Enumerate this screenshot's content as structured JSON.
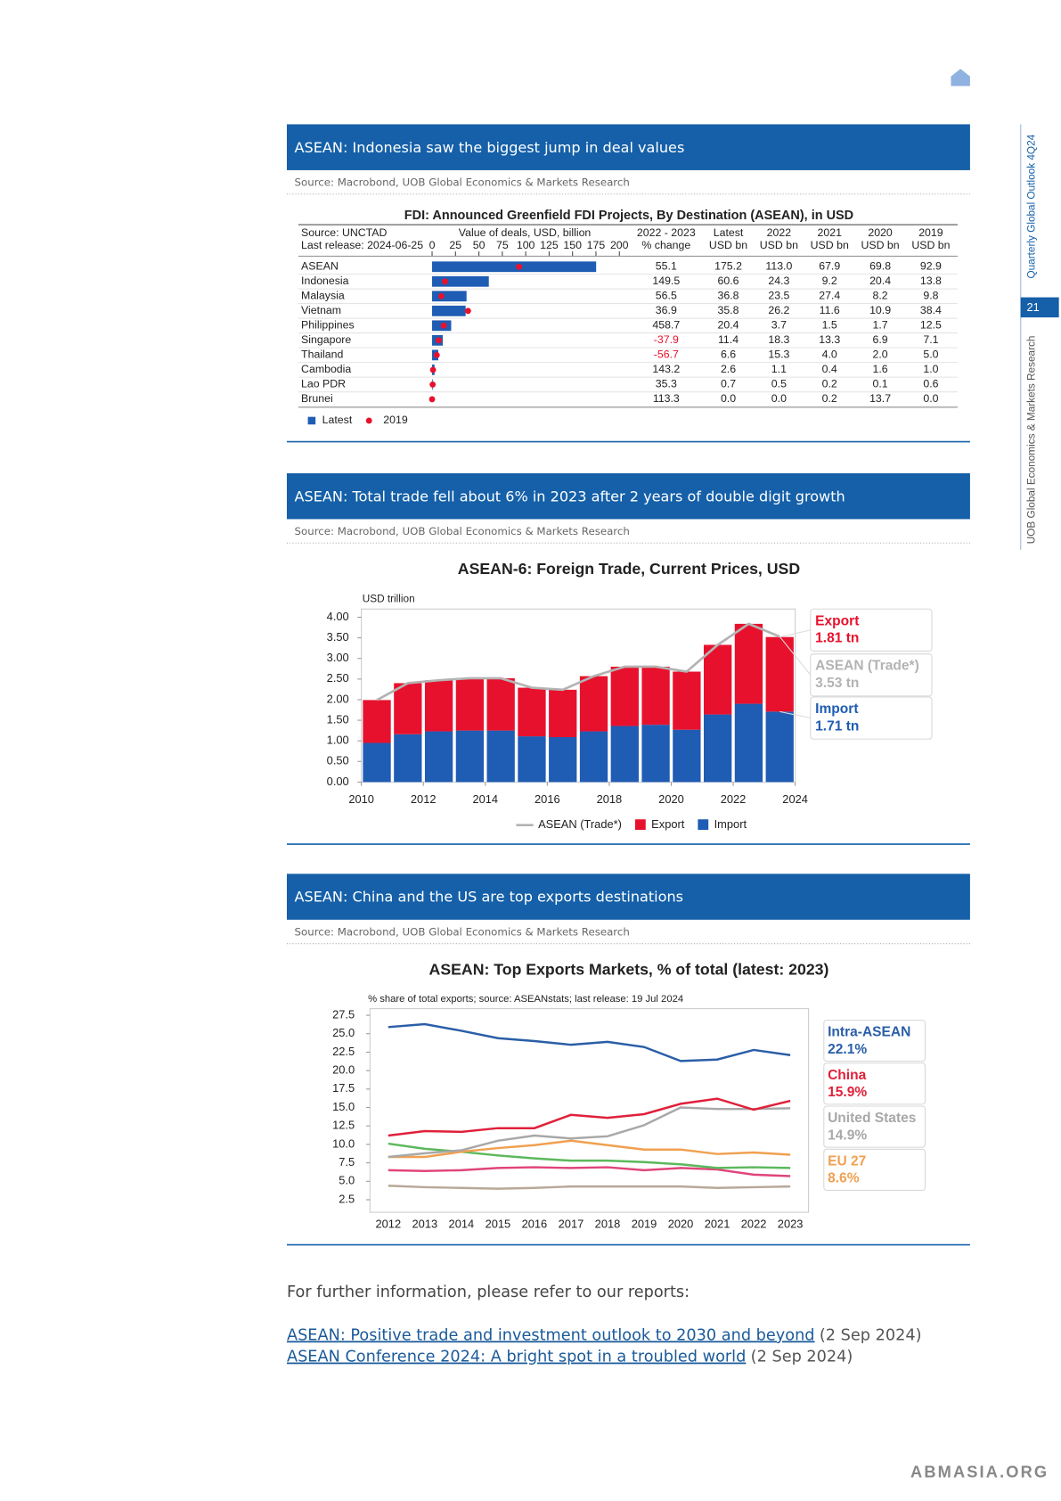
{
  "sidebar": {
    "publication": "Quarterly Global Outlook 4Q24",
    "page_number": "21",
    "department": "UOB Global Economics & Markets Research"
  },
  "sections": [
    {
      "title": "ASEAN: Indonesia saw the biggest jump in deal values",
      "source": "Source: Macrobond, UOB Global Economics & Markets Research"
    },
    {
      "title": "ASEAN: Total trade fell about 6% in 2023 after 2 years of double digit growth",
      "source": "Source: Macrobond, UOB Global Economics & Markets Research"
    },
    {
      "title": "ASEAN: China and the US are top exports destinations",
      "source": "Source: Macrobond, UOB Global Economics & Markets Research"
    }
  ],
  "chart_data": [
    {
      "type": "bar",
      "orientation": "horizontal",
      "title": "FDI: Announced Greenfield FDI Projects, By Destination (ASEAN), in USD",
      "source_note": "Source: UNCTAD",
      "release_note": "Last release: 2024-06-25",
      "axis_label": "Value of deals, USD, billion",
      "categories": [
        "ASEAN",
        "Indonesia",
        "Malaysia",
        "Vietnam",
        "Philippines",
        "Singapore",
        "Thailand",
        "Cambodia",
        "Lao PDR",
        "Brunei"
      ],
      "xlim": [
        0,
        200
      ],
      "xticks": [
        0,
        25,
        50,
        75,
        100,
        125,
        150,
        175,
        200
      ],
      "series": [
        {
          "name": "Latest",
          "unit": "USD bn",
          "color": "#1f5cb4",
          "mark": "bar",
          "values": [
            175.2,
            60.6,
            36.8,
            35.8,
            20.4,
            11.4,
            6.6,
            2.6,
            0.7,
            0.0
          ],
          "value_labels": [
            "175.2",
            "60.6",
            "36.8",
            "35.8",
            "20.4",
            "11.4",
            "6.6",
            "2.6",
            "0.7",
            "0.0"
          ]
        },
        {
          "name": "2019",
          "unit": "USD bn",
          "color": "#e8112d",
          "mark": "dot",
          "values": [
            92.9,
            13.8,
            9.8,
            38.4,
            12.5,
            7.1,
            5.0,
            1.0,
            0.6,
            0.0
          ],
          "value_labels": [
            "92.9",
            "13.8",
            "9.8",
            "38.4",
            "12.5",
            "7.1",
            "5.0",
            "1.0",
            "0.6",
            "0.0"
          ]
        }
      ],
      "columns": [
        {
          "name": "2022 - 2023",
          "unit": "% change",
          "values": [
            55.1,
            149.5,
            56.5,
            36.9,
            458.7,
            -37.9,
            -56.7,
            143.2,
            35.3,
            113.3
          ],
          "value_labels": [
            "55.1",
            "149.5",
            "56.5",
            "36.9",
            "458.7",
            "-37.9",
            "-56.7",
            "143.2",
            "35.3",
            "113.3"
          ]
        },
        {
          "name": "2022",
          "unit": "USD bn",
          "values": [
            113.0,
            24.3,
            23.5,
            26.2,
            3.7,
            18.3,
            15.3,
            1.1,
            0.5,
            0.0
          ],
          "value_labels": [
            "113.0",
            "24.3",
            "23.5",
            "26.2",
            "3.7",
            "18.3",
            "15.3",
            "1.1",
            "0.5",
            "0.0"
          ]
        },
        {
          "name": "2021",
          "unit": "USD bn",
          "values": [
            67.9,
            9.2,
            27.4,
            11.6,
            1.5,
            13.3,
            4.0,
            0.4,
            0.2,
            0.2
          ],
          "value_labels": [
            "67.9",
            "9.2",
            "27.4",
            "11.6",
            "1.5",
            "13.3",
            "4.0",
            "0.4",
            "0.2",
            "0.2"
          ]
        },
        {
          "name": "2020",
          "unit": "USD bn",
          "values": [
            69.8,
            20.4,
            8.2,
            10.9,
            1.7,
            6.9,
            2.0,
            1.6,
            0.1,
            13.7
          ],
          "value_labels": [
            "69.8",
            "20.4",
            "8.2",
            "10.9",
            "1.7",
            "6.9",
            "2.0",
            "1.6",
            "0.1",
            "13.7"
          ]
        }
      ],
      "negative_color": "#e8112d"
    },
    {
      "type": "bar",
      "stacked": true,
      "title": "ASEAN-6: Foreign Trade, Current Prices, USD",
      "y_label": "USD trillion",
      "x": [
        2010,
        2011,
        2012,
        2013,
        2014,
        2015,
        2016,
        2017,
        2018,
        2019,
        2020,
        2021,
        2022,
        2023
      ],
      "xlim": [
        2010,
        2024
      ],
      "xticks": [
        2010,
        2012,
        2014,
        2016,
        2018,
        2020,
        2022,
        2024
      ],
      "ylim": [
        0,
        4.2
      ],
      "yticks": [
        {
          "value": 0,
          "label": "0.00"
        },
        {
          "value": 0.5,
          "label": "0.50"
        },
        {
          "value": 1,
          "label": "1.00"
        },
        {
          "value": 1.5,
          "label": "1.50"
        },
        {
          "value": 2,
          "label": "2.00"
        },
        {
          "value": 2.5,
          "label": "2.50"
        },
        {
          "value": 3,
          "label": "3.00"
        },
        {
          "value": 3.5,
          "label": "3.50"
        },
        {
          "value": 4,
          "label": "4.00"
        }
      ],
      "series": [
        {
          "name": "ASEAN (Trade*)",
          "type": "line",
          "color": "#b3b3b3",
          "values": [
            1.99,
            2.4,
            2.47,
            2.52,
            2.52,
            2.29,
            2.24,
            2.57,
            2.8,
            2.8,
            2.68,
            3.33,
            3.84,
            3.53
          ],
          "end_label": "3.53 tn"
        },
        {
          "name": "Export",
          "type": "bar",
          "color": "#e8112d",
          "values": [
            1.04,
            1.24,
            1.24,
            1.27,
            1.27,
            1.18,
            1.15,
            1.34,
            1.44,
            1.41,
            1.41,
            1.69,
            1.94,
            1.81
          ],
          "end_label": "1.81 tn"
        },
        {
          "name": "Import",
          "type": "bar",
          "color": "#1f5cb4",
          "values": [
            0.95,
            1.16,
            1.23,
            1.25,
            1.25,
            1.11,
            1.09,
            1.23,
            1.36,
            1.39,
            1.27,
            1.64,
            1.9,
            1.71
          ],
          "end_label": "1.71 tn"
        }
      ],
      "legend": "bottom"
    },
    {
      "type": "line",
      "title": "ASEAN: Top Exports Markets, % of total (latest: 2023)",
      "subtitle": "% share of total exports; source: ASEANstats; last release: 19 Jul 2024",
      "categories": [
        2012,
        2013,
        2014,
        2015,
        2016,
        2017,
        2018,
        2019,
        2020,
        2021,
        2022,
        2023
      ],
      "ylim": [
        0.8,
        28.4
      ],
      "yticks": [
        2.5,
        {
          "value": 5,
          "label": "5.0"
        },
        7.5,
        {
          "value": 10,
          "label": "10.0"
        },
        12.5,
        {
          "value": 15,
          "label": "15.0"
        },
        17.5,
        {
          "value": 20,
          "label": "20.0"
        },
        22.5,
        {
          "value": 25,
          "label": "25.0"
        },
        27.5
      ],
      "series": [
        {
          "name": "Intra-ASEAN",
          "color": "#2a5ea8",
          "values": [
            25.9,
            26.3,
            25.4,
            24.4,
            24.0,
            23.5,
            23.9,
            23.2,
            21.3,
            21.5,
            22.8,
            22.1
          ],
          "end_label": "22.1%"
        },
        {
          "name": "China",
          "color": "#e0203a",
          "values": [
            11.2,
            11.8,
            11.7,
            12.2,
            12.2,
            14.0,
            13.6,
            14.1,
            15.5,
            16.2,
            14.7,
            15.9
          ],
          "end_label": "15.9%"
        },
        {
          "name": "United States",
          "color": "#a8a8a8",
          "values": [
            8.3,
            8.8,
            9.2,
            10.5,
            11.2,
            10.8,
            11.1,
            12.6,
            15.0,
            14.8,
            14.8,
            14.9
          ],
          "end_label": "14.9%"
        },
        {
          "name": "EU 27",
          "color": "#f0a050",
          "values": [
            8.3,
            8.3,
            9.0,
            9.5,
            9.9,
            10.5,
            9.9,
            9.3,
            9.3,
            8.7,
            8.9,
            8.6
          ],
          "end_label": "8.6%"
        },
        {
          "color": "#5cb85c",
          "values": [
            10.1,
            9.4,
            9.0,
            8.5,
            8.1,
            7.8,
            7.8,
            7.6,
            7.3,
            6.8,
            6.9,
            6.8
          ]
        },
        {
          "color": "#e0457b",
          "values": [
            6.5,
            6.4,
            6.5,
            6.8,
            6.9,
            6.8,
            6.9,
            6.5,
            6.8,
            6.6,
            5.9,
            5.7
          ]
        },
        {
          "color": "#b8a898",
          "values": [
            4.4,
            4.2,
            4.1,
            4.0,
            4.1,
            4.3,
            4.3,
            4.3,
            4.3,
            4.1,
            4.2,
            4.3
          ]
        }
      ]
    }
  ],
  "footer": {
    "intro": "For further information, please refer to our reports:",
    "links": [
      {
        "text": "ASEAN: Positive trade and investment outlook to 2030 and beyond",
        "date": "(2 Sep 2024)"
      },
      {
        "text": "ASEAN Conference 2024: A bright spot in a troubled world",
        "date": "(2 Sep 2024)"
      }
    ]
  },
  "watermark": "ABMASIA.ORG"
}
